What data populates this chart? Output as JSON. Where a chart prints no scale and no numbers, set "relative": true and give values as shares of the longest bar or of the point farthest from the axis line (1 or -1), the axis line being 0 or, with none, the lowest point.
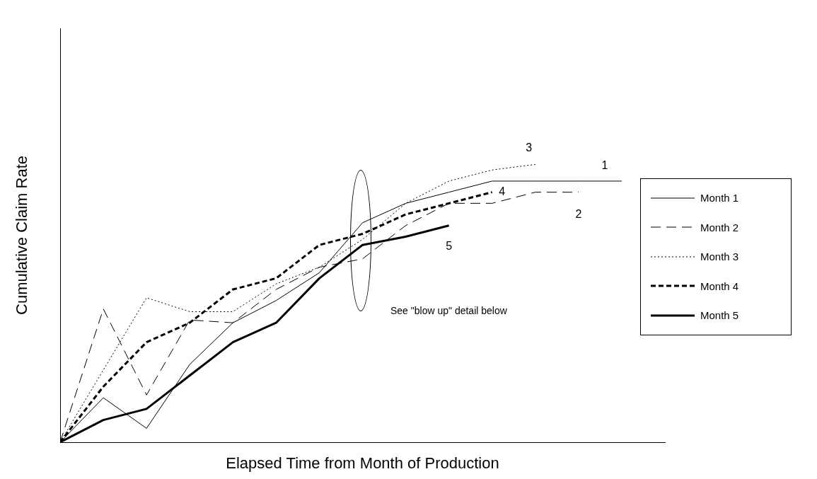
{
  "chart_data": {
    "type": "line",
    "relative": true,
    "xlabel": "Elapsed Time from Month of Production",
    "ylabel": "Cumulative Claim Rate",
    "legend": "right",
    "marker": "none",
    "grid": false,
    "categories": [
      null,
      null,
      null,
      null,
      null,
      null,
      null,
      null,
      null,
      null,
      null,
      null,
      null,
      null,
      null
    ],
    "series": [
      {
        "name": "Month 1",
        "color": "#000000",
        "line_style": "solid",
        "values": [
          0,
          0.16,
          0.05,
          0.28,
          0.43,
          0.51,
          0.61,
          0.79,
          0.86,
          0.9,
          0.94,
          0.94,
          0.94,
          0.94,
          null
        ]
      },
      {
        "name": "Month 2",
        "color": "#000000",
        "line_style": "dashed",
        "values": [
          0,
          0.48,
          0.17,
          0.44,
          0.43,
          0.55,
          0.63,
          0.66,
          0.78,
          0.86,
          0.86,
          0.9,
          0.9,
          null,
          null
        ]
      },
      {
        "name": "Month 3",
        "color": "#000000",
        "line_style": "dotted",
        "values": [
          0,
          0.26,
          0.52,
          0.47,
          0.47,
          0.57,
          0.63,
          0.73,
          0.86,
          0.94,
          0.98,
          1,
          null,
          null,
          null
        ]
      },
      {
        "name": "Month 4",
        "color": "#000000",
        "line_style": "dashed",
        "values": [
          0,
          0.2,
          0.36,
          0.43,
          0.55,
          0.59,
          0.71,
          0.75,
          0.82,
          0.86,
          0.9,
          null,
          null,
          null,
          null
        ]
      },
      {
        "name": "Month 5",
        "color": "#000000",
        "line_style": "solid",
        "values": [
          0,
          0.08,
          0.12,
          0.24,
          0.36,
          0.43,
          0.59,
          0.71,
          0.74,
          0.78,
          null,
          null,
          null,
          null,
          null
        ]
      }
    ],
    "annotations": [
      "1",
      "2",
      "3",
      "4",
      "5",
      "See \"blow up\" detail below"
    ]
  }
}
